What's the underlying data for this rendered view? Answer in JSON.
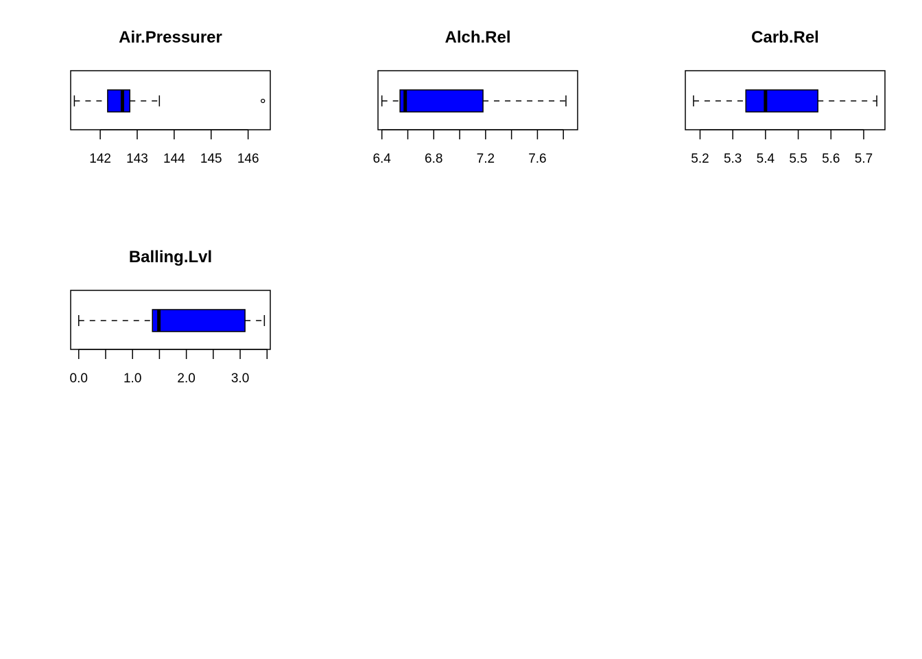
{
  "chart_data": [
    {
      "type": "boxplot",
      "orientation": "horizontal",
      "title": "Air.Pressurer",
      "xlim": [
        141.2,
        146.6
      ],
      "ticks": [
        142,
        143,
        144,
        145,
        146
      ],
      "tick_labels": [
        "142",
        "143",
        "144",
        "145",
        "146"
      ],
      "box": {
        "whisker_low": 141.3,
        "q1": 142.2,
        "median": 142.6,
        "q3": 142.8,
        "whisker_high": 143.6
      },
      "outliers": [
        146.4
      ],
      "fill_color": "#0000ff"
    },
    {
      "type": "boxplot",
      "orientation": "horizontal",
      "title": "Alch.Rel",
      "xlim": [
        6.37,
        7.91
      ],
      "ticks": [
        6.4,
        6.6,
        6.8,
        7.0,
        7.2,
        7.4,
        7.6,
        7.8
      ],
      "tick_labels": [
        "6.4",
        "",
        "6.8",
        "",
        "7.2",
        "",
        "7.6",
        ""
      ],
      "box": {
        "whisker_low": 6.4,
        "q1": 6.54,
        "median": 6.58,
        "q3": 7.18,
        "whisker_high": 7.82
      },
      "outliers": [],
      "fill_color": "#0000ff"
    },
    {
      "type": "boxplot",
      "orientation": "horizontal",
      "title": "Carb.Rel",
      "xlim": [
        5.155,
        5.765
      ],
      "ticks": [
        5.2,
        5.3,
        5.4,
        5.5,
        5.6,
        5.7
      ],
      "tick_labels": [
        "5.2",
        "5.3",
        "5.4",
        "5.5",
        "5.6",
        "5.7"
      ],
      "box": {
        "whisker_low": 5.18,
        "q1": 5.34,
        "median": 5.4,
        "q3": 5.56,
        "whisker_high": 5.74
      },
      "outliers": [],
      "fill_color": "#0000ff"
    },
    {
      "type": "boxplot",
      "orientation": "horizontal",
      "title": "Balling.Lvl",
      "xlim": [
        -0.15,
        3.56
      ],
      "ticks": [
        0.0,
        0.5,
        1.0,
        1.5,
        2.0,
        2.5,
        3.0,
        3.5
      ],
      "tick_labels": [
        "0.0",
        "",
        "1.0",
        "",
        "2.0",
        "",
        "3.0",
        ""
      ],
      "box": {
        "whisker_low": 0.0,
        "q1": 1.37,
        "median": 1.49,
        "q3": 3.09,
        "whisker_high": 3.45
      },
      "outliers": [],
      "fill_color": "#0000ff"
    }
  ]
}
